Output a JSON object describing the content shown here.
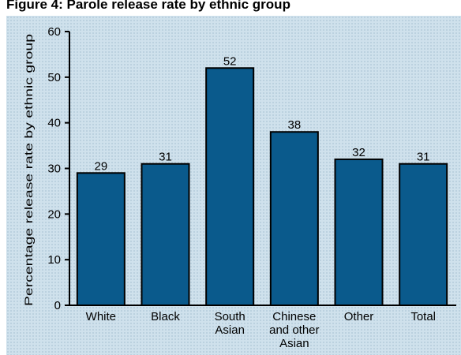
{
  "chart_data": {
    "type": "bar",
    "title": "Figure 4: Parole release rate by ethnic group",
    "xlabel": "",
    "ylabel": "Percentage release rate by ethnic group",
    "categories": [
      "White",
      "Black",
      "South Asian",
      "Chinese and other Asian",
      "Other",
      "Total"
    ],
    "category_lines": [
      [
        "White"
      ],
      [
        "Black"
      ],
      [
        "South",
        "Asian"
      ],
      [
        "Chinese",
        "and other",
        "Asian"
      ],
      [
        "Other"
      ],
      [
        "Total"
      ]
    ],
    "values": [
      29,
      31,
      52,
      38,
      32,
      31
    ],
    "ylim": [
      0,
      60
    ],
    "yticks": [
      0,
      10,
      20,
      30,
      40,
      50,
      60
    ],
    "grid": false,
    "legend": "none",
    "bar_color": "#0a5a8c",
    "background_color": "#cfe1ec"
  }
}
